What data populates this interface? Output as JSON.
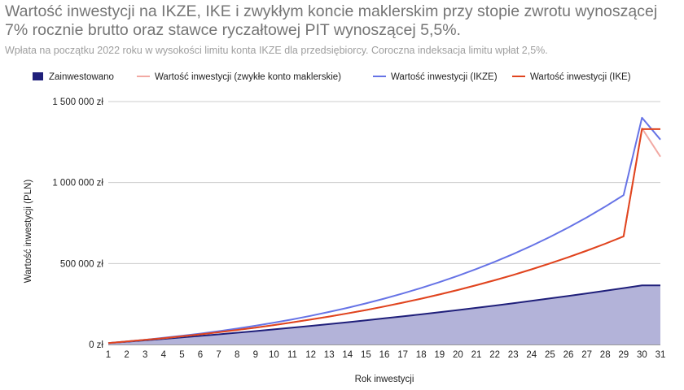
{
  "chart_data": {
    "type": "line",
    "title": "Wartość inwestycji na IKZE, IKE i zwykłym koncie maklerskim przy stopie zwrotu wynoszącej 7% rocznie brutto oraz stawce ryczałtowej PIT wynoszącej 5,5%.",
    "subtitle": "Wpłata na początku 2022 roku w wysokości limitu konta IKZE dla przedsiębiorcy. Coroczna indeksacja limitu wpłat 2,5%.",
    "xlabel": "Rok inwestycji",
    "ylabel": "Wartość inwestycji (PLN)",
    "ylim": [
      0,
      1500000
    ],
    "yticks": [
      0,
      500000,
      1000000,
      1500000
    ],
    "ytick_labels": [
      "0 zł",
      "500 000 zł",
      "1 000 000 zł",
      "1 500 000 zł"
    ],
    "x": [
      1,
      2,
      3,
      4,
      5,
      6,
      7,
      8,
      9,
      10,
      11,
      12,
      13,
      14,
      15,
      16,
      17,
      18,
      19,
      20,
      21,
      22,
      23,
      24,
      25,
      26,
      27,
      28,
      29,
      30,
      31
    ],
    "grid": "horizontal",
    "legend_position": "top",
    "series": [
      {
        "name": "Zainwestowano",
        "style": "area",
        "color": "#1f1f7a",
        "fill": "#b3b3d9",
        "values": [
          8322,
          16853,
          25597,
          34559,
          43746,
          53162,
          62814,
          72707,
          82847,
          93241,
          103895,
          114816,
          126009,
          137483,
          149242,
          161295,
          173650,
          186314,
          199295,
          212600,
          226238,
          240216,
          254544,
          269230,
          284283,
          299713,
          315528,
          331738,
          348354,
          365386,
          365386
        ]
      },
      {
        "name": "Wartość inwestycji (zwykłe konto maklerskie)",
        "style": "line",
        "color": "#f2a9a3",
        "values": [
          8905,
          18397,
          28512,
          39283,
          50747,
          62944,
          75913,
          89696,
          104337,
          119883,
          136380,
          153880,
          172433,
          192097,
          212928,
          234987,
          258339,
          283050,
          309191,
          336836,
          366063,
          396953,
          429593,
          464072,
          500483,
          538925,
          579502,
          622322,
          667501,
          1335000,
          1160000
        ]
      },
      {
        "name": "Wartość inwestycji (IKZE)",
        "style": "line",
        "color": "#6673e6",
        "values": [
          8905,
          18657,
          29313,
          40934,
          53585,
          67334,
          82254,
          98420,
          115913,
          134819,
          155228,
          177236,
          200945,
          226461,
          253898,
          283376,
          315023,
          348973,
          385368,
          424360,
          466109,
          510784,
          558566,
          609645,
          664226,
          722527,
          784779,
          851229,
          922142,
          1400000,
          1265000
        ]
      },
      {
        "name": "Wartość inwestycji (IKE)",
        "style": "line",
        "color": "#e0441e",
        "values": [
          8905,
          18397,
          28512,
          39283,
          50747,
          62944,
          75913,
          89696,
          104337,
          119883,
          136380,
          153880,
          172433,
          192097,
          212928,
          234987,
          258339,
          283050,
          309191,
          336836,
          366063,
          396953,
          429593,
          464072,
          500483,
          538925,
          579502,
          622322,
          667501,
          1330000,
          1330000
        ]
      }
    ]
  }
}
